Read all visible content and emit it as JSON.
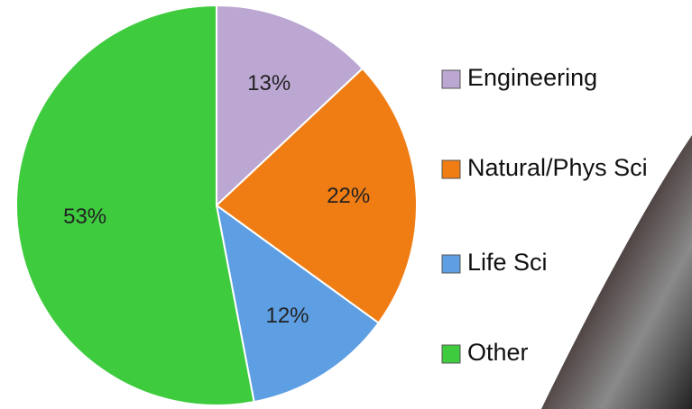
{
  "chart_data": {
    "type": "pie",
    "categories": [
      "Engineering",
      "Natural/Phys Sci",
      "Life Sci",
      "Other"
    ],
    "values": [
      13,
      22,
      12,
      53
    ],
    "value_labels": [
      "13%",
      "22%",
      "12%",
      "53%"
    ],
    "colors": [
      "#bba7d2",
      "#f07d14",
      "#5e9ee3",
      "#3ecb3e"
    ],
    "legend": "right"
  }
}
